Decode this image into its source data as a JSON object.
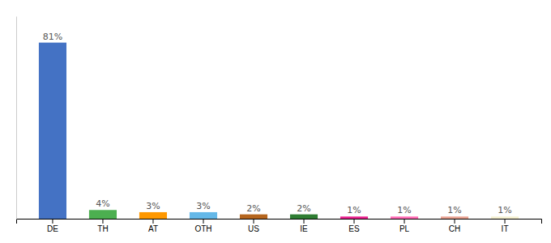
{
  "chart_data": {
    "type": "bar",
    "categories": [
      "DE",
      "TH",
      "AT",
      "OTH",
      "US",
      "IE",
      "ES",
      "PL",
      "CH",
      "IT"
    ],
    "values": [
      81,
      4,
      3,
      3,
      2,
      2,
      1,
      1,
      1,
      1
    ],
    "value_labels": [
      "81%",
      "4%",
      "3%",
      "3%",
      "2%",
      "2%",
      "1%",
      "1%",
      "1%",
      "1%"
    ],
    "colors": [
      "#4472c4",
      "#4caf50",
      "#ff9800",
      "#64b8e8",
      "#b5651d",
      "#2e7d32",
      "#e91e8c",
      "#ff69b4",
      "#e8a090",
      "#f5f0d0"
    ],
    "ylim": [
      0,
      93.15
    ],
    "data_labels": true,
    "tick_labels": "x",
    "grid": false
  }
}
